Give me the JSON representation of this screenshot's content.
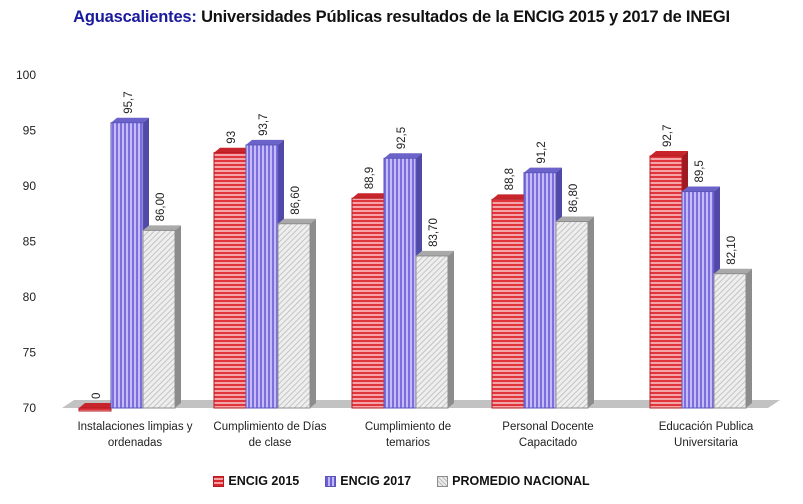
{
  "chart_data": {
    "type": "bar",
    "title_highlight": "Aguascalientes:",
    "title_rest": " Universidades Públicas resultados de la ENCIG 2015 y 2017 de INEGI",
    "categories": [
      [
        "Instalaciones limpias y",
        "ordenadas"
      ],
      [
        "Cumplimiento de Días",
        "de clase"
      ],
      [
        "Cumplimiento de",
        "temarios"
      ],
      [
        "Personal Docente",
        "Capacitado"
      ],
      [
        "Educación Publica",
        "Universitaria"
      ]
    ],
    "series": [
      {
        "name": "ENCIG 2015",
        "values": [
          0,
          93,
          88.9,
          88.8,
          92.7
        ],
        "labels": [
          "0",
          "93",
          "88,9",
          "88,8",
          "92,7"
        ],
        "color": "#d9262e"
      },
      {
        "name": "ENCIG 2017",
        "values": [
          95.7,
          93.7,
          92.5,
          91.2,
          89.5
        ],
        "labels": [
          "95,7",
          "93,7",
          "92,5",
          "91,2",
          "89,5"
        ],
        "color": "#8b7fe6"
      },
      {
        "name": "PROMEDIO NACIONAL",
        "values": [
          86.0,
          86.6,
          83.7,
          86.8,
          82.1
        ],
        "labels": [
          "86,00",
          "86,60",
          "83,70",
          "86,80",
          "82,10"
        ],
        "color": "#d8d8d8"
      }
    ],
    "yticks": [
      "70",
      "75",
      "80",
      "85",
      "90",
      "95",
      "100"
    ],
    "ylim": [
      70,
      100
    ],
    "xlabel": "",
    "ylabel": "",
    "grid": false,
    "legend_position": "bottom"
  }
}
